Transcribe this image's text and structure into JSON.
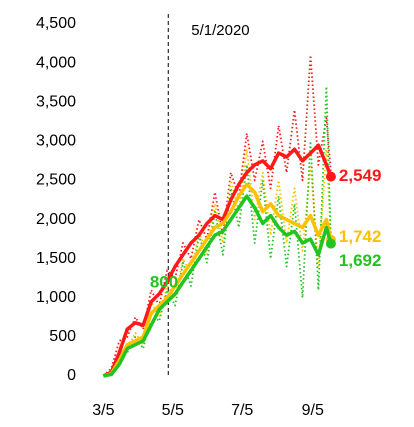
{
  "chart_data": {
    "type": "line",
    "x": [
      0,
      7,
      14,
      21,
      28,
      35,
      42,
      49,
      56,
      63,
      70,
      77,
      84,
      91,
      98,
      105,
      112,
      119,
      126,
      133,
      140,
      147,
      154,
      161,
      168,
      175,
      182,
      189,
      196,
      200
    ],
    "xlim": [
      -3,
      215
    ],
    "xticks": [
      {
        "value": 0,
        "label": "3/5"
      },
      {
        "value": 61,
        "label": "5/5"
      },
      {
        "value": 122,
        "label": "7/5"
      },
      {
        "value": 184,
        "label": "9/5"
      }
    ],
    "ylim": [
      0,
      4500
    ],
    "yticks": [
      0,
      500,
      {
        "value": 1000,
        "label": "1,000"
      },
      {
        "value": 1500,
        "label": "1,500"
      },
      {
        "value": 2000,
        "label": "2,000"
      },
      {
        "value": 2500,
        "label": "2,500"
      },
      {
        "value": 3000,
        "label": "3,000"
      },
      {
        "value": 3500,
        "label": "3,500"
      },
      {
        "value": 4000,
        "label": "4,000"
      },
      {
        "value": 4500,
        "label": "4,500"
      }
    ],
    "grid": false,
    "vline": {
      "x": 57,
      "label": "5/1/2020"
    },
    "annotation": {
      "text": "800",
      "color": "#22c422"
    },
    "series": [
      {
        "color": "#ff1a1a",
        "dashed": true,
        "values": [
          0,
          100,
          450,
          500,
          750,
          600,
          1100,
          900,
          1350,
          1250,
          1700,
          1500,
          2000,
          1750,
          2350,
          1800,
          2600,
          2300,
          3100,
          2500,
          3000,
          2400,
          3200,
          2600,
          3400,
          2500,
          4100,
          2700,
          3300,
          2600
        ]
      },
      {
        "color": "#ffc000",
        "dashed": true,
        "values": [
          0,
          60,
          300,
          350,
          550,
          400,
          950,
          750,
          1150,
          1000,
          1500,
          1300,
          1850,
          1550,
          2200,
          1700,
          2500,
          2100,
          2900,
          2000,
          2600,
          1800,
          2500,
          1700,
          2400,
          1600,
          2700,
          1400,
          2900,
          1750
        ]
      },
      {
        "color": "#22c422",
        "dashed": true,
        "values": [
          0,
          40,
          250,
          300,
          500,
          350,
          800,
          700,
          1100,
          900,
          1450,
          1150,
          1800,
          1450,
          2100,
          1550,
          2400,
          1900,
          2700,
          1700,
          2500,
          1500,
          2300,
          1400,
          2200,
          1000,
          3000,
          1100,
          3700,
          1700
        ]
      },
      {
        "color": "#ff1a1a",
        "dashed": false,
        "values": [
          0,
          50,
          300,
          600,
          680,
          650,
          950,
          1050,
          1200,
          1400,
          1550,
          1700,
          1800,
          1950,
          2050,
          2000,
          2250,
          2450,
          2600,
          2700,
          2750,
          2650,
          2850,
          2800,
          2900,
          2750,
          2850,
          2950,
          2700,
          2549
        ],
        "value_labels": [
          null,
          null,
          null,
          null,
          null,
          null,
          null,
          null,
          null,
          null,
          null,
          null,
          null,
          null,
          null,
          null,
          null,
          null,
          null,
          null,
          null,
          null,
          null,
          null,
          null,
          null,
          null,
          null,
          null,
          "2,549"
        ]
      },
      {
        "color": "#ffc000",
        "dashed": false,
        "values": [
          0,
          30,
          200,
          400,
          450,
          500,
          800,
          900,
          1000,
          1150,
          1300,
          1450,
          1600,
          1750,
          1900,
          1950,
          2100,
          2300,
          2450,
          2350,
          2100,
          2200,
          2050,
          2000,
          1950,
          1900,
          2050,
          1800,
          2000,
          1742
        ],
        "value_labels": [
          null,
          null,
          null,
          null,
          null,
          null,
          null,
          null,
          null,
          null,
          null,
          null,
          null,
          null,
          null,
          null,
          null,
          null,
          null,
          null,
          null,
          null,
          null,
          null,
          null,
          null,
          null,
          null,
          null,
          "1,742"
        ]
      },
      {
        "color": "#22c422",
        "dashed": false,
        "values": [
          0,
          20,
          150,
          350,
          400,
          450,
          650,
          850,
          950,
          1050,
          1200,
          1350,
          1500,
          1650,
          1800,
          1850,
          2000,
          2150,
          2300,
          2150,
          1950,
          2050,
          1900,
          1800,
          1850,
          1700,
          1750,
          1550,
          1900,
          1692
        ],
        "value_labels": [
          null,
          null,
          null,
          null,
          null,
          null,
          null,
          null,
          null,
          null,
          null,
          null,
          null,
          null,
          null,
          null,
          null,
          null,
          null,
          null,
          null,
          null,
          null,
          null,
          null,
          null,
          null,
          null,
          null,
          "1,692"
        ]
      }
    ]
  }
}
